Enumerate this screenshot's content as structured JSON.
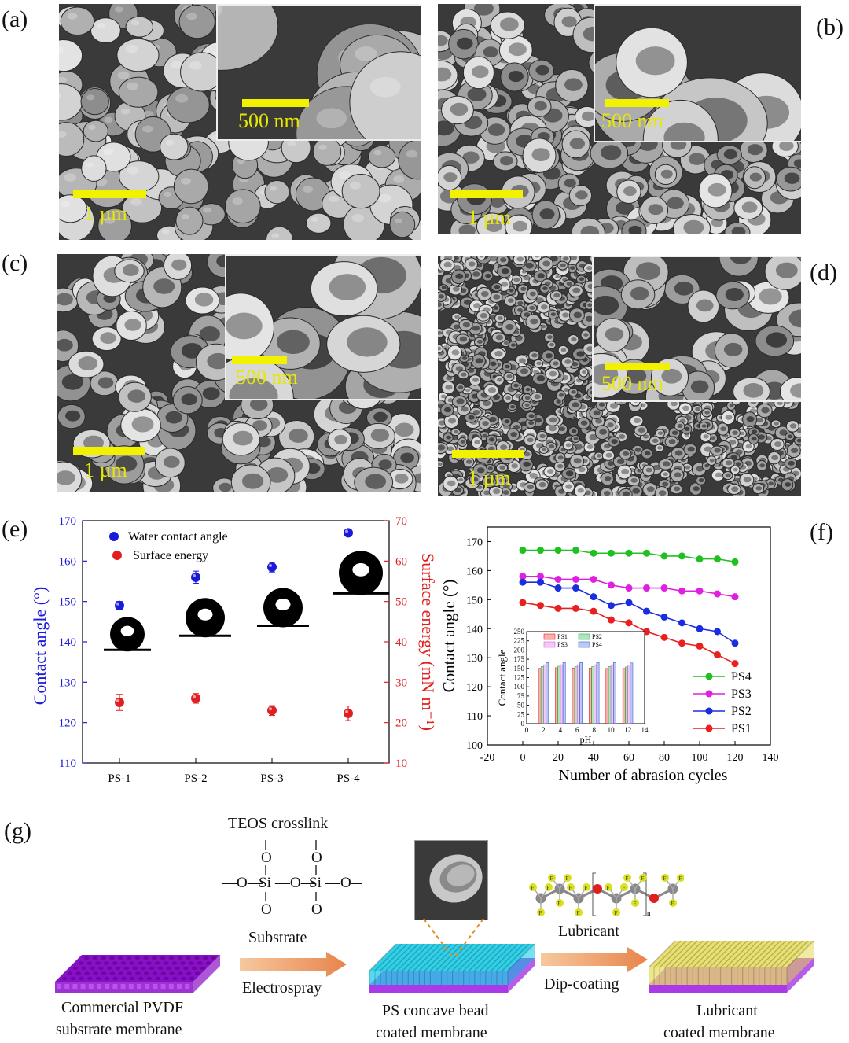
{
  "panel_labels": {
    "a": "(a)",
    "b": "(b)",
    "c": "(c)",
    "d": "(d)",
    "e": "(e)",
    "f": "(f)",
    "g": "(g)"
  },
  "sem": {
    "a": {
      "main_scale": "1 µm",
      "inset_scale": "500 nm"
    },
    "b": {
      "main_scale": "1 µm",
      "inset_scale": "500 nm"
    },
    "c": {
      "main_scale": "1 µm",
      "inset_scale": "500 nm"
    },
    "d": {
      "main_scale": "1 µm",
      "inset_scale": "500 nm"
    }
  },
  "colors": {
    "scale_bar": "#f2f200",
    "blue_axis": "#1a1adb",
    "red_axis": "#e02020",
    "ps1": "#e82020",
    "ps2": "#1a2ee0",
    "ps3": "#e020e0",
    "ps4": "#20c020"
  },
  "chart_data": [
    {
      "type": "scatter",
      "panel": "(e)",
      "categories": [
        "PS-1",
        "PS-2",
        "PS-3",
        "PS-4"
      ],
      "ylabel": "Contact angle (°)",
      "ylabel_right": "Surface energy (mN m⁻¹)",
      "ylim": [
        110,
        170
      ],
      "ylim_right": [
        10,
        70
      ],
      "yticks": [
        "110",
        "120",
        "130",
        "140",
        "150",
        "160",
        "170"
      ],
      "yticks_right": [
        "10",
        "20",
        "30",
        "40",
        "50",
        "60",
        "70"
      ],
      "series": [
        {
          "name": "Water contact angle",
          "axis": "left",
          "color": "#1a1adb",
          "values": [
            149,
            156,
            158.5,
            167
          ],
          "errors": [
            1,
            1.5,
            1.2,
            0.6
          ]
        },
        {
          "name": "Surface energy",
          "axis": "right",
          "color": "#e02020",
          "values": [
            25,
            26,
            23,
            22.3
          ],
          "errors": [
            2,
            1.2,
            1.2,
            1.8
          ]
        }
      ],
      "legend": "top-left"
    },
    {
      "type": "line",
      "panel": "(f)",
      "xlabel": "Number of abrasion cycles",
      "ylabel": "Contact angle (°)",
      "xlim": [
        -20,
        140
      ],
      "ylim": [
        100,
        175
      ],
      "xticks": [
        "-20",
        "0",
        "20",
        "40",
        "60",
        "80",
        "100",
        "120",
        "140"
      ],
      "yticks": [
        "100",
        "110",
        "120",
        "130",
        "140",
        "150",
        "160",
        "170"
      ],
      "x": [
        0,
        10,
        20,
        30,
        40,
        50,
        60,
        70,
        80,
        90,
        100,
        110,
        120
      ],
      "series": [
        {
          "name": "PS4",
          "color": "#20c020",
          "values": [
            167,
            167,
            167,
            167,
            166,
            166,
            166,
            166,
            165,
            165,
            164,
            164,
            163
          ]
        },
        {
          "name": "PS3",
          "color": "#e020e0",
          "values": [
            158,
            158,
            157,
            157,
            157,
            155,
            154,
            154,
            154,
            153,
            153,
            152,
            151
          ]
        },
        {
          "name": "PS2",
          "color": "#1a2ee0",
          "values": [
            156,
            156,
            154,
            154,
            151,
            148,
            149,
            146,
            144,
            142,
            140,
            139,
            135
          ]
        },
        {
          "name": "PS1",
          "color": "#e82020",
          "values": [
            149,
            148,
            147,
            147,
            146,
            143,
            142,
            139,
            137,
            135,
            134,
            131,
            128
          ]
        }
      ],
      "legend": "bottom-right",
      "inset": {
        "type": "bar",
        "xlabel": "pH",
        "ylabel": "Contact angle",
        "xlim": [
          0,
          14
        ],
        "ylim": [
          0,
          250
        ],
        "xticks": [
          "0",
          "2",
          "4",
          "6",
          "8",
          "10",
          "12",
          "14"
        ],
        "yticks": [
          "0",
          "25",
          "50",
          "75",
          "100",
          "125",
          "150",
          "175",
          "200",
          "225",
          "250"
        ],
        "categories": [
          2,
          4,
          6,
          8,
          10,
          12
        ],
        "series": [
          {
            "name": "PS1",
            "color": "#e82020",
            "values": [
              150,
              152,
              151,
              151,
              150,
              150
            ]
          },
          {
            "name": "PS2",
            "color": "#20b040",
            "values": [
              155,
              156,
              155,
              155,
              155,
              154
            ]
          },
          {
            "name": "PS3",
            "color": "#e060e0",
            "values": [
              160,
              160,
              160,
              160,
              160,
              159
            ]
          },
          {
            "name": "PS4",
            "color": "#4060e0",
            "values": [
              166,
              166,
              166,
              166,
              166,
              165
            ]
          }
        ]
      }
    }
  ],
  "schematic": {
    "teos_title": "TEOS crosslink",
    "substrate_label": "Substrate",
    "electrospray_label": "Electrospray",
    "lubricant_label": "Lubricant",
    "dipcoating_label": "Dip-coating",
    "membrane1": [
      "Commercial PVDF",
      "substrate membrane"
    ],
    "membrane2": [
      "PS concave bead",
      "coated membrane"
    ],
    "membrane3": [
      "Lubricant",
      "coated membrane"
    ],
    "chem": {
      "O": "O",
      "Si": "Si",
      "bond_left": "—O—",
      "bond_mid": "—O—",
      "bond_right": "—O—",
      "F": "F",
      "n": "n"
    }
  }
}
